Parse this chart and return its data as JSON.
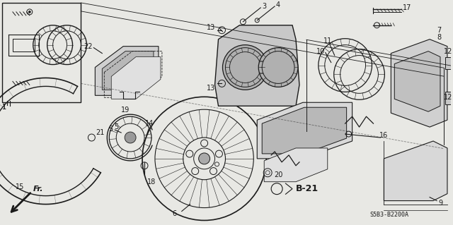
{
  "bg_color": "#e8e8e4",
  "line_color": "#1a1a1a",
  "fig_width": 6.4,
  "fig_height": 3.19,
  "dpi": 100,
  "ref_code": "S5B3-B2200A",
  "b21_label": "B-21",
  "fr_label": "Fr."
}
